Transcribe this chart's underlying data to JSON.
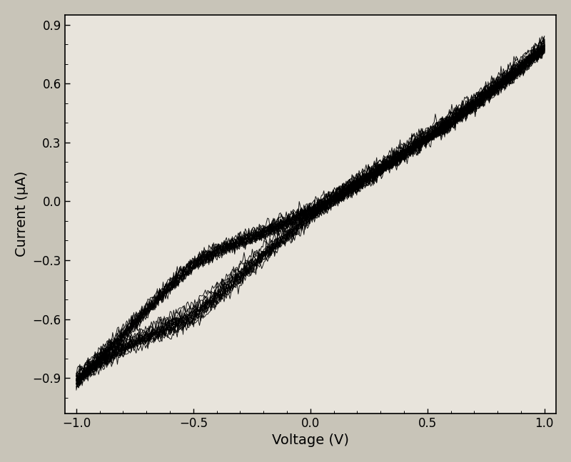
{
  "xlabel": "Voltage (V)",
  "ylabel": "Current (μA)",
  "xlim": [
    -1.05,
    1.05
  ],
  "ylim": [
    -1.08,
    0.95
  ],
  "xticks": [
    -1.0,
    -0.5,
    0.0,
    0.5,
    1.0
  ],
  "yticks": [
    -0.9,
    -0.6,
    -0.3,
    0.0,
    0.3,
    0.6,
    0.9
  ],
  "num_cycles": 18,
  "line_color": "#000000",
  "line_width": 0.7,
  "bg_color": "#e8e4dc",
  "fig_bg_color": "#c8c4b8",
  "xlabel_fontsize": 14,
  "ylabel_fontsize": 14,
  "tick_fontsize": 12
}
